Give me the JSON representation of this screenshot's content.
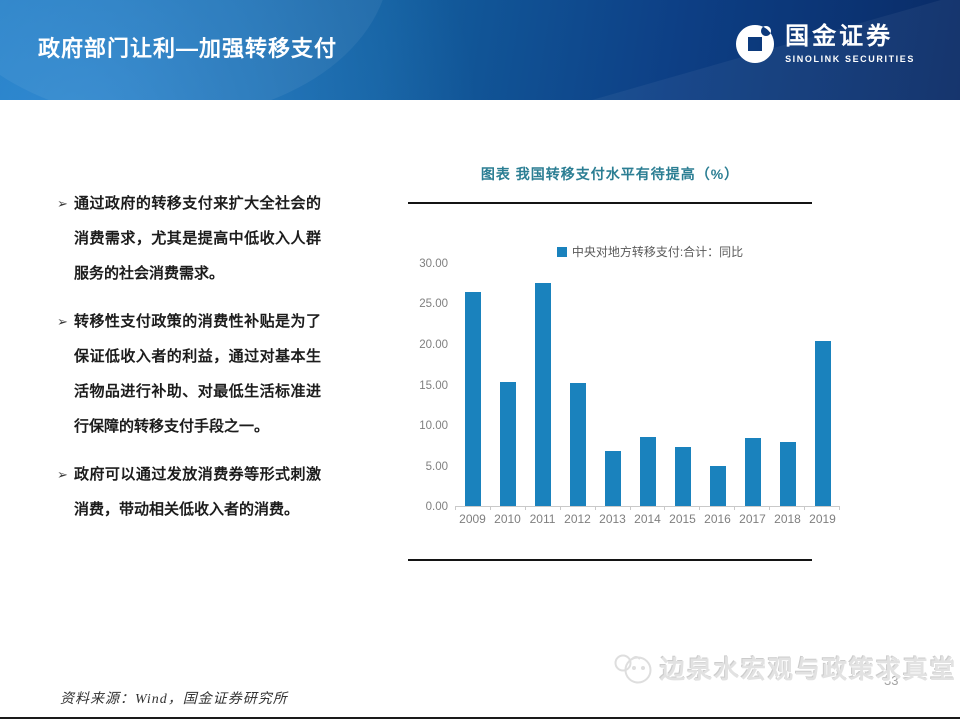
{
  "header": {
    "title": "政府部门让利—加强转移支付",
    "logo_cn": "国金证券",
    "logo_en": "SINOLINK SECURITIES"
  },
  "bullets": [
    {
      "marker": "➢",
      "text": "通过政府的转移支付来扩大全社会的消费需求，尤其是提高中低收入人群服务的社会消费需求。"
    },
    {
      "marker": "➢",
      "text": "转移性支付政策的消费性补贴是为了保证低收入者的利益，通过对基本生活物品进行补助、对最低生活标准进行保障的转移支付手段之一。"
    },
    {
      "marker": "➢",
      "text": "政府可以通过发放消费券等形式刺激消费，带动相关低收入者的消费。"
    }
  ],
  "chart": {
    "title": "图表  我国转移支付水平有待提高（%）",
    "legend": "中央对地方转移支付:合计：同比"
  },
  "chart_data": {
    "type": "bar",
    "title": "图表 我国转移支付水平有待提高（%）",
    "series_name": "中央对地方转移支付:合计：同比",
    "categories": [
      "2009",
      "2010",
      "2011",
      "2012",
      "2013",
      "2014",
      "2015",
      "2016",
      "2017",
      "2018",
      "2019"
    ],
    "values": [
      26.5,
      15.4,
      27.6,
      15.3,
      6.8,
      8.5,
      7.3,
      4.9,
      8.4,
      7.9,
      20.5
    ],
    "ylim": [
      0,
      30
    ],
    "yticks": [
      "0.00",
      "5.00",
      "10.00",
      "15.00",
      "20.00",
      "25.00",
      "30.00"
    ],
    "grid": false,
    "legend_position": "top",
    "bar_color": "#1a82bd"
  },
  "footer": {
    "source": "资料来源：Wind，国金证券研究所",
    "page_number": "33",
    "watermark": "边泉水宏观与政策求真堂"
  },
  "colors": {
    "bar": "#1a82bd",
    "chart_title": "#2b7e93",
    "header_light": "#1771b7",
    "header_dark": "#0a2b66",
    "axis_text": "#7f7f7f"
  }
}
